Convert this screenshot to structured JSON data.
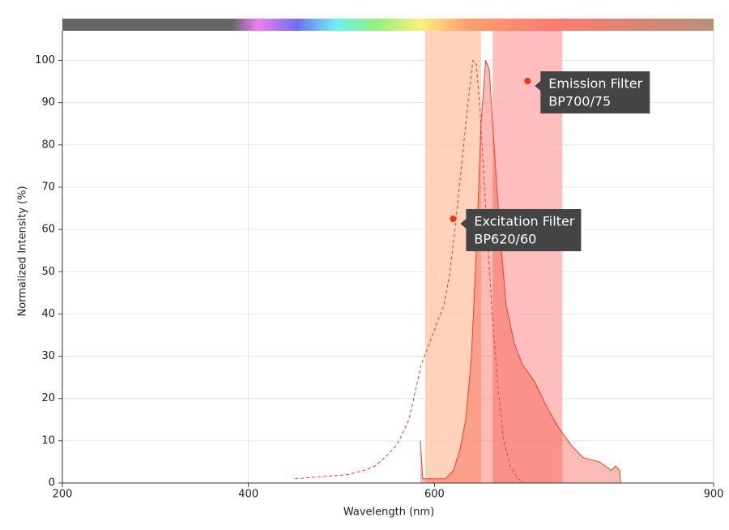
{
  "chart_data": {
    "type": "spectrum",
    "xlabel": "Wavelength (nm)",
    "ylabel": "Normalized Intensity (%)",
    "xlim": [
      200,
      900
    ],
    "ylim": [
      0,
      107
    ],
    "xticks": [
      200,
      400,
      600,
      900
    ],
    "yticks": [
      0,
      10,
      20,
      30,
      40,
      50,
      60,
      70,
      80,
      90,
      100
    ],
    "grid": true,
    "filters": [
      {
        "name": "Excitation Filter",
        "label": "BP620/60",
        "range": [
          590,
          650
        ],
        "color": "#ffc4a4"
      },
      {
        "name": "Emission Filter",
        "label": "BP700/75",
        "range": [
          662.5,
          737.5
        ],
        "color": "#ffa8a8"
      }
    ],
    "series": [
      {
        "color": "#f0402a",
        "dashed": true,
        "filled": false,
        "x": [
          450,
          507,
          524.7,
          536,
          546.5,
          559.6,
          572.6,
          585.7,
          594.4,
          603,
          610,
          616,
          622,
          629,
          636,
          641.4,
          645,
          649,
          655,
          662,
          668.4,
          674.5,
          681.5,
          690,
          697
        ],
        "values": [
          1,
          2,
          3,
          4,
          6,
          9,
          15,
          28,
          33,
          38,
          42,
          49,
          60,
          75,
          90,
          100,
          99,
          88,
          65,
          40,
          22,
          10,
          4,
          1,
          0
        ]
      },
      {
        "color": "#f0402a",
        "dashed": false,
        "filled": true,
        "x": [
          584.8,
          587.4,
          611.8,
          620.5,
          627.5,
          633.6,
          639.7,
          645,
          650,
          655,
          658.8,
          664,
          670,
          677,
          685.8,
          694.5,
          707.6,
          720.6,
          733.7,
          746.7,
          759.8,
          777,
          790.3,
          794.6,
          799,
          800
        ],
        "values": [
          10,
          1,
          1,
          3,
          8,
          15,
          30,
          55,
          85,
          100,
          98,
          80,
          60,
          42,
          33,
          28,
          24,
          18,
          13,
          9,
          6,
          5,
          3,
          4,
          3,
          0
        ]
      }
    ]
  }
}
